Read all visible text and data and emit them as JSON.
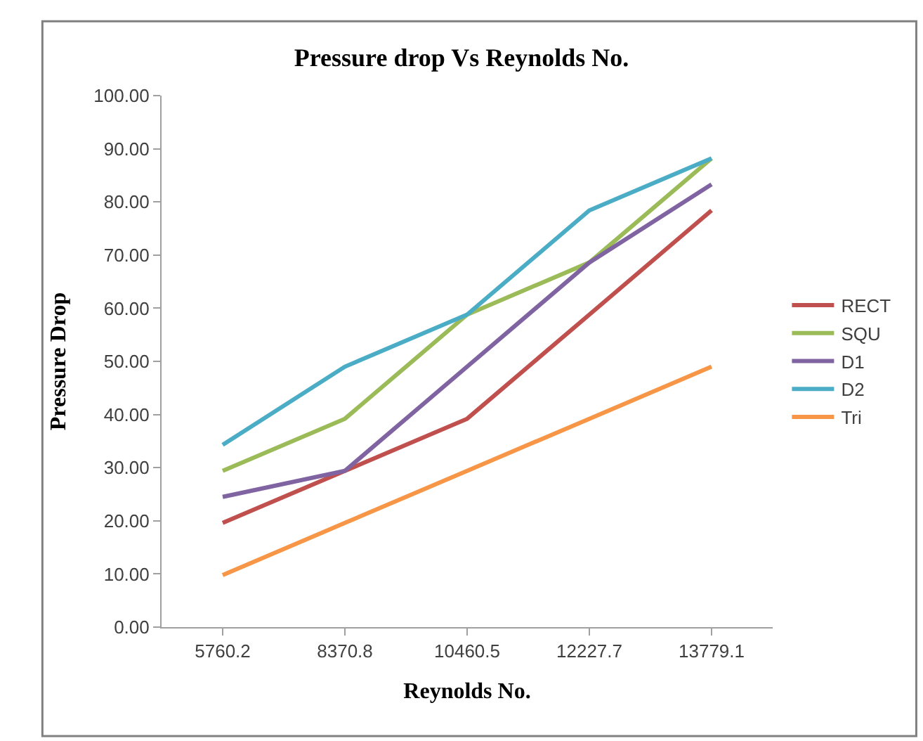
{
  "chart_data": {
    "type": "line",
    "title": "Pressure drop Vs Reynolds No.",
    "xlabel": "Reynolds No.",
    "ylabel": "Pressure Drop",
    "categories": [
      "5760.2",
      "8370.8",
      "10460.5",
      "12227.7",
      "13779.1"
    ],
    "series": [
      {
        "name": "RECT",
        "color": "#c0504d",
        "values": [
          19.6,
          29.4,
          39.2,
          58.8,
          78.4
        ]
      },
      {
        "name": "SQU",
        "color": "#9bbb59",
        "values": [
          29.4,
          39.2,
          58.8,
          68.6,
          88.2
        ]
      },
      {
        "name": "D1",
        "color": "#8064a2",
        "values": [
          24.5,
          29.4,
          49.0,
          68.6,
          83.3
        ]
      },
      {
        "name": "D2",
        "color": "#4bacc6",
        "values": [
          34.3,
          49.0,
          58.8,
          78.4,
          88.2
        ]
      },
      {
        "name": "Tri",
        "color": "#f79646",
        "values": [
          9.8,
          19.6,
          29.4,
          39.2,
          49.0
        ]
      }
    ],
    "ylim": [
      0,
      100
    ],
    "yticks": [
      {
        "value": 0,
        "label": "0.00"
      },
      {
        "value": 10,
        "label": "10.00"
      },
      {
        "value": 20,
        "label": "20.00"
      },
      {
        "value": 30,
        "label": "30.00"
      },
      {
        "value": 40,
        "label": "40.00"
      },
      {
        "value": 50,
        "label": "50.00"
      },
      {
        "value": 60,
        "label": "60.00"
      },
      {
        "value": 70,
        "label": "70.00"
      },
      {
        "value": 80,
        "label": "80.00"
      },
      {
        "value": 90,
        "label": "90.00"
      },
      {
        "value": 100,
        "label": "100.00"
      }
    ],
    "legend": "right",
    "marker": "none",
    "line_style": "solid"
  }
}
